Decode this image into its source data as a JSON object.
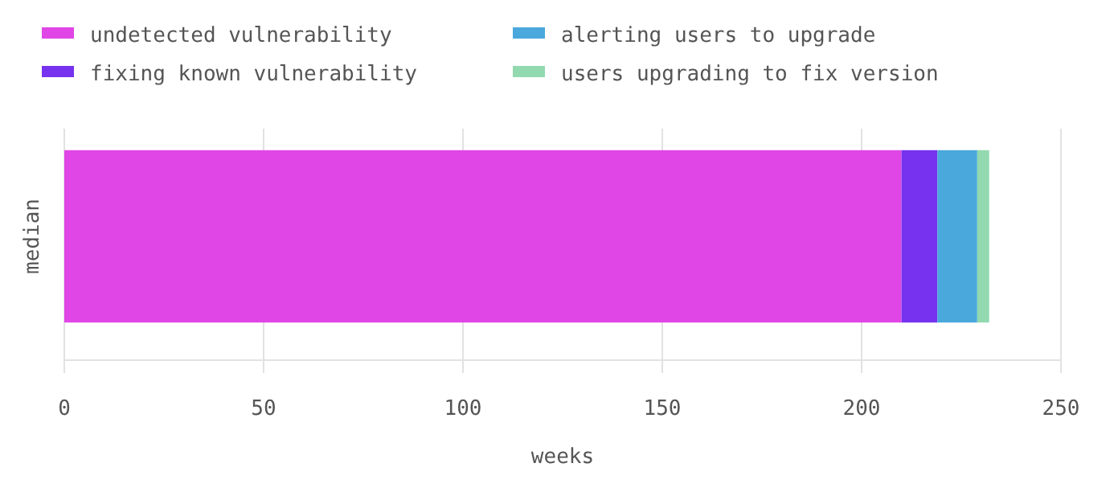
{
  "chart_data": {
    "type": "bar",
    "orientation": "horizontal",
    "stacked": true,
    "categories": [
      "median"
    ],
    "series": [
      {
        "name": "undetected vulnerability",
        "color": "#e046e6",
        "values": [
          210
        ]
      },
      {
        "name": "fixing known vulnerability",
        "color": "#7632ee",
        "values": [
          9
        ]
      },
      {
        "name": "alerting users to upgrade",
        "color": "#4aa8dc",
        "values": [
          10
        ]
      },
      {
        "name": "users upgrading to fix version",
        "color": "#93d9b0",
        "values": [
          3
        ]
      }
    ],
    "xlim": [
      0,
      250
    ],
    "xticks": [
      0,
      50,
      100,
      150,
      200,
      250
    ],
    "xlabel": "weeks",
    "grid": "x",
    "legend": "top left"
  }
}
